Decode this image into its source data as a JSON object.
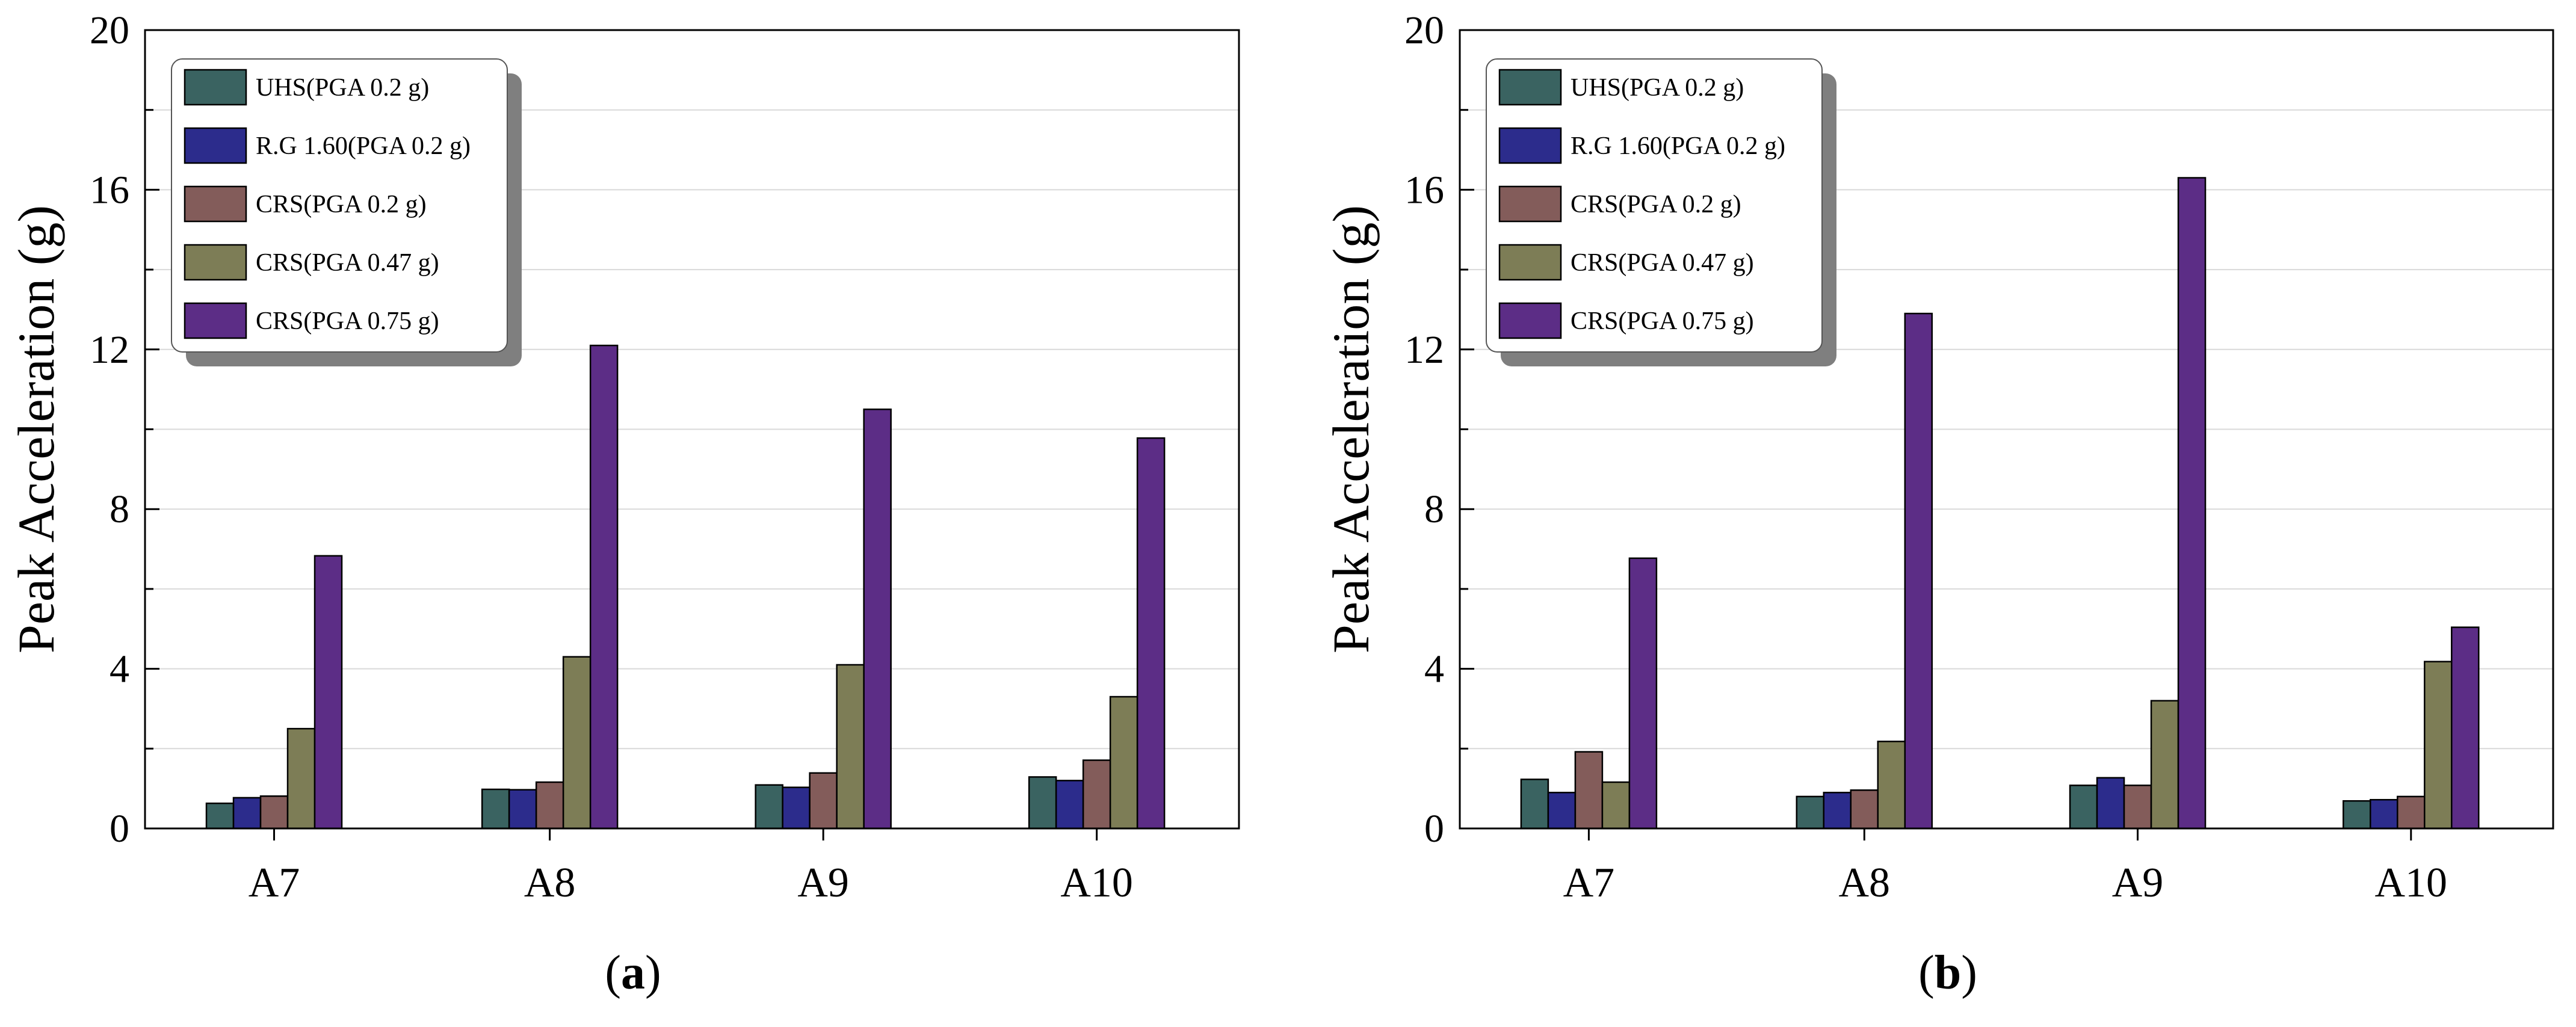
{
  "figure": {
    "panel_labels": [
      "a",
      "b"
    ]
  },
  "colors": {
    "UHS(PGA 0.2 g)": "#3a6361",
    "R.G 1.60(PGA 0.2 g)": "#2c2c8c",
    "CRS(PGA 0.2 g)": "#835c5a",
    "CRS(PGA 0.47 g)": "#7d7d56",
    "CRS(PGA 0.75 g)": "#5c2d86"
  },
  "chart_data": [
    {
      "type": "bar",
      "panel": "a",
      "title": "",
      "xlabel": "",
      "ylabel": "Peak Acceleration (g)",
      "ylim": [
        0,
        20
      ],
      "yticks": [
        0,
        4,
        8,
        12,
        16,
        20
      ],
      "grid": true,
      "legend_position": "top-left",
      "categories": [
        "A7",
        "A8",
        "A9",
        "A10"
      ],
      "series": [
        {
          "name": "UHS(PGA 0.2 g)",
          "values": [
            0.63,
            0.98,
            1.09,
            1.29
          ]
        },
        {
          "name": "R.G 1.60(PGA 0.2 g)",
          "values": [
            0.77,
            0.97,
            1.03,
            1.2
          ]
        },
        {
          "name": "CRS(PGA 0.2 g)",
          "values": [
            0.81,
            1.16,
            1.39,
            1.71
          ]
        },
        {
          "name": "CRS(PGA 0.47 g)",
          "values": [
            2.5,
            4.3,
            4.1,
            3.3
          ]
        },
        {
          "name": "CRS(PGA 0.75 g)",
          "values": [
            6.83,
            12.1,
            10.5,
            9.78
          ]
        }
      ]
    },
    {
      "type": "bar",
      "panel": "b",
      "title": "",
      "xlabel": "",
      "ylabel": "Peak Acceleration (g)",
      "ylim": [
        0,
        20
      ],
      "yticks": [
        0,
        4,
        8,
        12,
        16,
        20
      ],
      "grid": true,
      "legend_position": "top-left",
      "categories": [
        "A7",
        "A8",
        "A9",
        "A10"
      ],
      "series": [
        {
          "name": "UHS(PGA 0.2 g)",
          "values": [
            1.23,
            0.8,
            1.08,
            0.69
          ]
        },
        {
          "name": "R.G 1.60(PGA 0.2 g)",
          "values": [
            0.9,
            0.9,
            1.27,
            0.72
          ]
        },
        {
          "name": "CRS(PGA 0.2 g)",
          "values": [
            1.92,
            0.96,
            1.08,
            0.8
          ]
        },
        {
          "name": "CRS(PGA 0.47 g)",
          "values": [
            1.16,
            2.18,
            3.2,
            4.18
          ]
        },
        {
          "name": "CRS(PGA 0.75 g)",
          "values": [
            6.77,
            12.9,
            16.3,
            5.04
          ]
        }
      ]
    }
  ]
}
